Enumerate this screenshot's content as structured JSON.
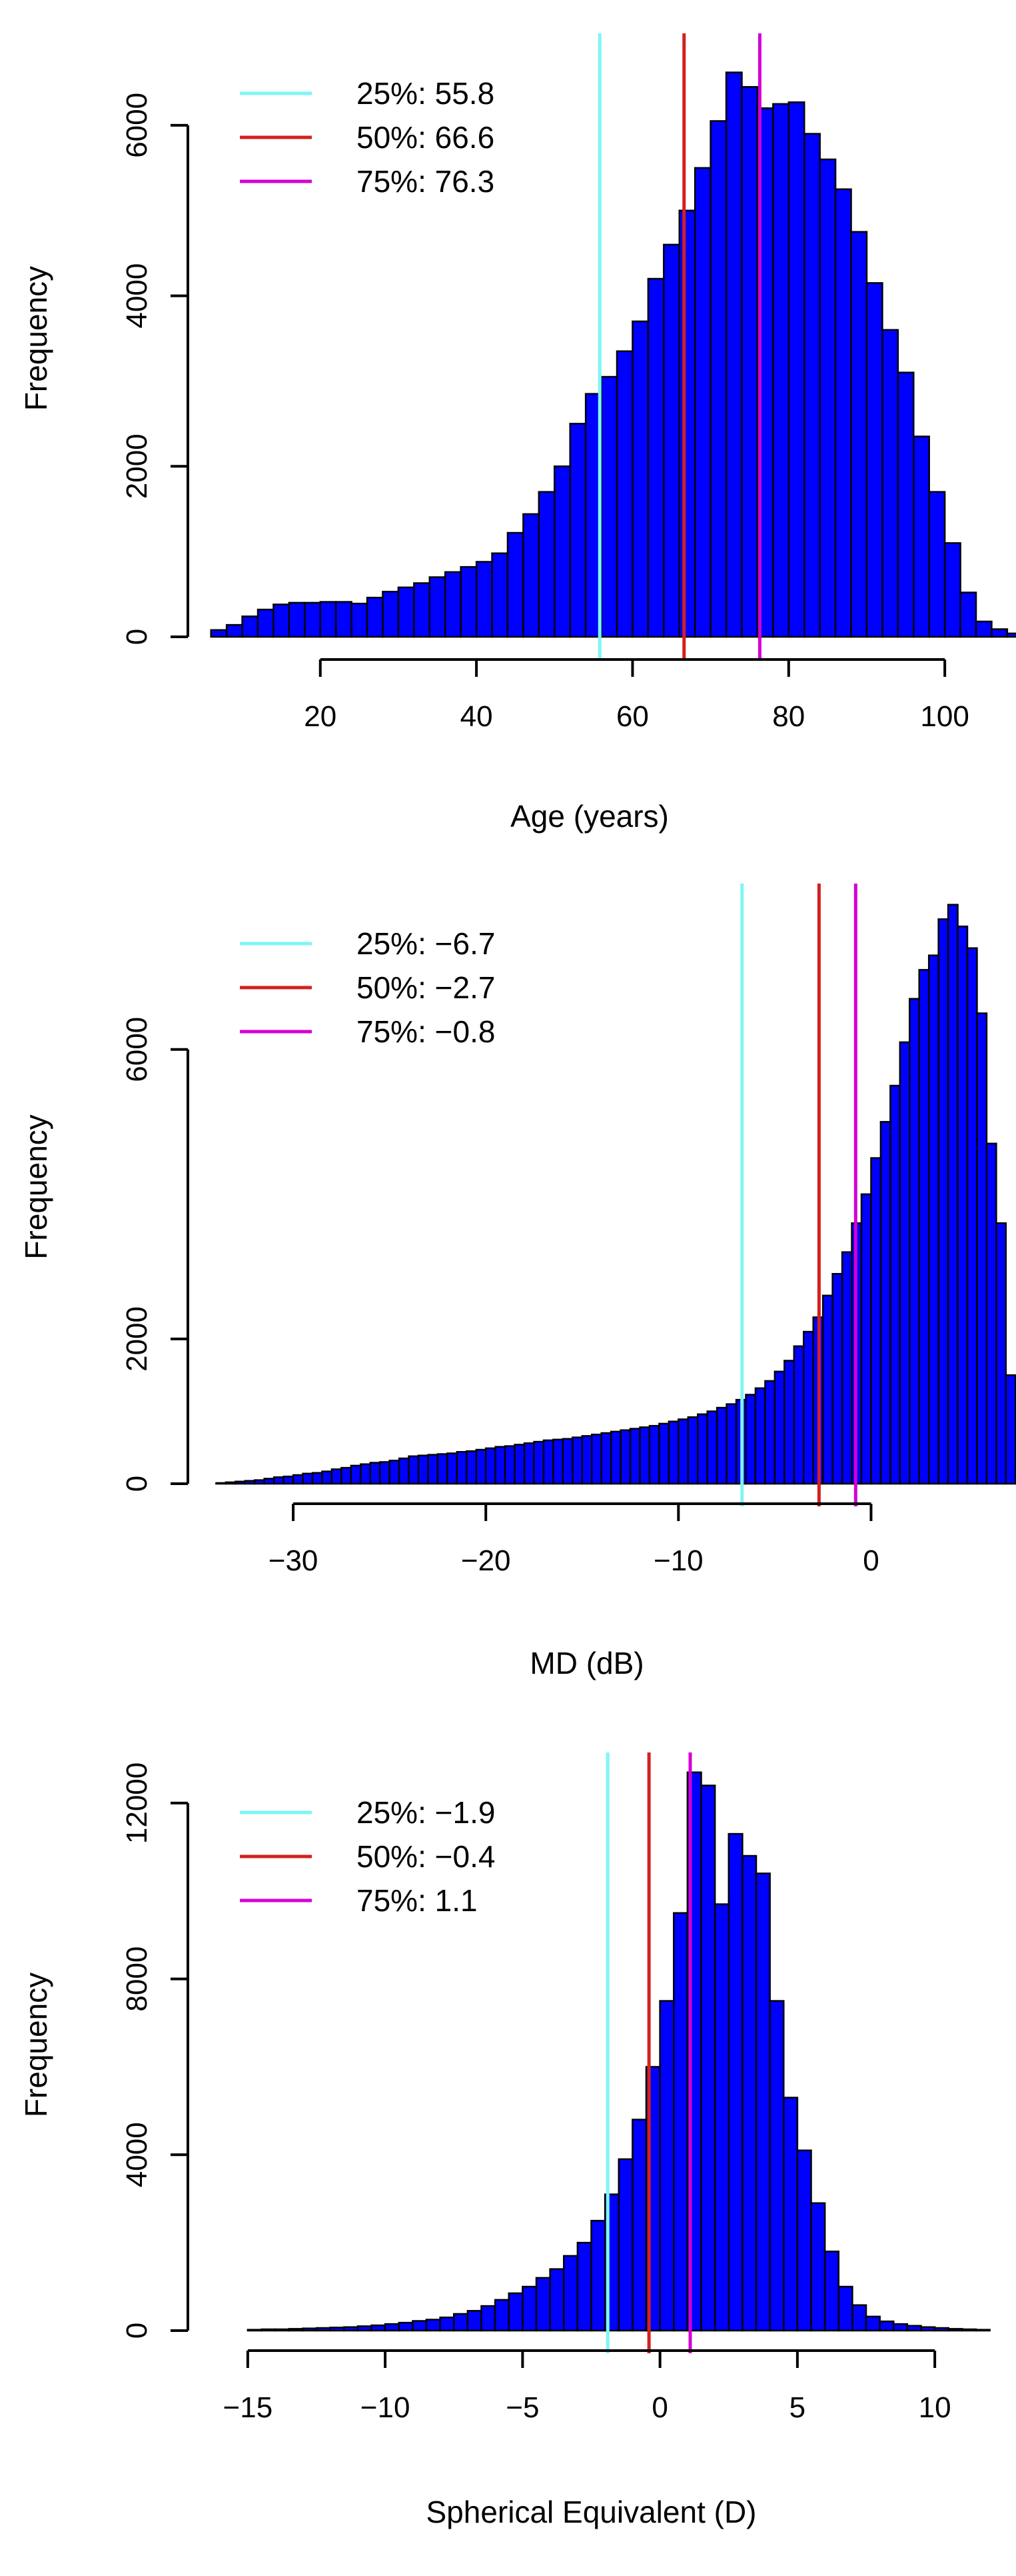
{
  "colors": {
    "bar_fill": "#0000ff",
    "bar_stroke": "#000000",
    "q25": "#7ff5f5",
    "q50": "#d42020",
    "q75": "#d400d4",
    "axis": "#000000"
  },
  "chart_data": [
    {
      "type": "bar",
      "subtype": "histogram",
      "title": "",
      "xlabel": "Age (years)",
      "ylabel": "Frequency",
      "xlim": [
        5,
        104
      ],
      "ylim": [
        0,
        7000
      ],
      "x_ticks": [
        20,
        40,
        60,
        80,
        100
      ],
      "y_ticks": [
        0,
        2000,
        4000,
        6000
      ],
      "bin_start": 6,
      "bin_width": 2,
      "values": [
        80,
        140,
        240,
        320,
        380,
        400,
        400,
        410,
        410,
        390,
        460,
        530,
        580,
        630,
        700,
        760,
        820,
        880,
        980,
        1220,
        1440,
        1700,
        2000,
        2500,
        2850,
        3050,
        3350,
        3700,
        4200,
        4600,
        5000,
        5500,
        6050,
        6620,
        6450,
        6200,
        6250,
        6270,
        5900,
        5600,
        5250,
        4750,
        4150,
        3600,
        3100,
        2350,
        1700,
        1100,
        520,
        180,
        90,
        40
      ],
      "quantile_lines": [
        {
          "label": "25%: 55.8",
          "value": 55.8,
          "color_key": "q25"
        },
        {
          "label": "50%: 66.6",
          "value": 66.6,
          "color_key": "q50"
        },
        {
          "label": "75%: 76.3",
          "value": 76.3,
          "color_key": "q75"
        }
      ],
      "legend_position": "top-left",
      "grid": false
    },
    {
      "type": "bar",
      "subtype": "histogram",
      "title": "",
      "xlabel": "MD (dB)",
      "ylabel": "Frequency",
      "xlim": [
        -34.5,
        5
      ],
      "ylim": [
        0,
        8200
      ],
      "x_ticks": [
        -30,
        -20,
        -10,
        0
      ],
      "y_ticks": [
        0,
        2000,
        6000
      ],
      "bin_start": -34,
      "bin_width": 0.5,
      "values": [
        10,
        20,
        30,
        40,
        50,
        70,
        90,
        100,
        120,
        140,
        150,
        170,
        200,
        220,
        250,
        270,
        290,
        300,
        320,
        350,
        380,
        390,
        400,
        410,
        420,
        440,
        450,
        470,
        490,
        510,
        520,
        540,
        560,
        580,
        600,
        610,
        620,
        640,
        660,
        680,
        700,
        720,
        740,
        760,
        780,
        800,
        830,
        860,
        890,
        920,
        960,
        1000,
        1050,
        1100,
        1160,
        1230,
        1320,
        1420,
        1550,
        1700,
        1900,
        2100,
        2300,
        2600,
        2900,
        3200,
        3600,
        4000,
        4500,
        5000,
        5500,
        6100,
        6700,
        7100,
        7300,
        7800,
        8000,
        7700,
        7400,
        6500,
        4700,
        3600,
        1500,
        200,
        20
      ],
      "quantile_lines": [
        {
          "label": "25%: −6.7",
          "value": -6.7,
          "color_key": "q25"
        },
        {
          "label": "50%: −2.7",
          "value": -2.7,
          "color_key": "q50"
        },
        {
          "label": "75%: −0.8",
          "value": -0.8,
          "color_key": "q75"
        }
      ],
      "legend_position": "top-left",
      "grid": false
    },
    {
      "type": "bar",
      "subtype": "histogram",
      "title": "",
      "xlabel": "Spherical Equivalent (D)",
      "ylabel": "Frequency",
      "xlim": [
        -16.5,
        11.5
      ],
      "ylim": [
        0,
        13000
      ],
      "x_ticks": [
        -15,
        -10,
        -5,
        0,
        5,
        10
      ],
      "y_ticks": [
        0,
        4000,
        8000,
        12000
      ],
      "bin_start": -15,
      "bin_width": 0.5,
      "values": [
        20,
        30,
        30,
        40,
        50,
        60,
        70,
        80,
        100,
        120,
        150,
        180,
        220,
        250,
        300,
        380,
        450,
        560,
        700,
        850,
        1000,
        1200,
        1400,
        1700,
        2000,
        2500,
        3100,
        3900,
        4800,
        6000,
        7500,
        9500,
        12700,
        12400,
        9700,
        11300,
        10800,
        10400,
        7500,
        5300,
        4100,
        2900,
        1800,
        1000,
        580,
        320,
        210,
        150,
        110,
        80,
        60,
        40,
        30,
        20
      ],
      "quantile_lines": [
        {
          "label": "25%: −1.9",
          "value": -1.9,
          "color_key": "q25"
        },
        {
          "label": "50%: −0.4",
          "value": -0.4,
          "color_key": "q50"
        },
        {
          "label": "75%: 1.1",
          "value": 1.1,
          "color_key": "q75"
        }
      ],
      "legend_position": "top-left",
      "grid": false
    }
  ]
}
